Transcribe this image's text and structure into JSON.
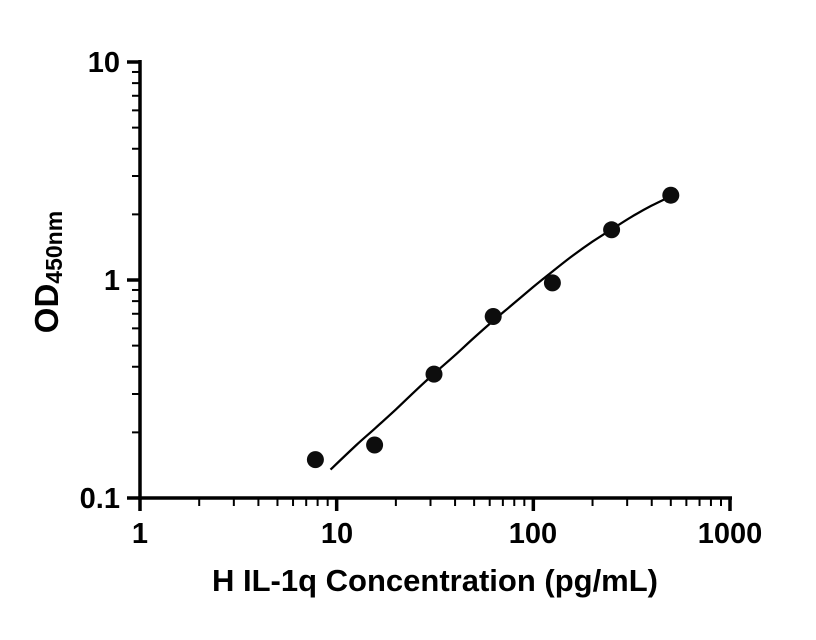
{
  "chart_data": {
    "type": "scatter",
    "title": "",
    "xlabel": "H IL-1q Concentration (pg/mL)",
    "ylabel_main": "OD",
    "ylabel_sub": "450nm",
    "x_scale": "log",
    "y_scale": "log",
    "xlim": [
      1,
      1000
    ],
    "ylim": [
      0.1,
      10
    ],
    "grid": false,
    "legend": "none",
    "x_ticks": [
      {
        "v": 1,
        "label": "1"
      },
      {
        "v": 10,
        "label": "10"
      },
      {
        "v": 100,
        "label": "100"
      },
      {
        "v": 1000,
        "label": "1000"
      }
    ],
    "y_ticks": [
      {
        "v": 10,
        "label": "10"
      },
      {
        "v": 1,
        "label": "1"
      },
      {
        "v": 0.1,
        "label": "0.1"
      }
    ],
    "x_minor_ticks": [
      2,
      3,
      4,
      5,
      6,
      7,
      8,
      9,
      20,
      30,
      40,
      50,
      60,
      70,
      80,
      90,
      200,
      300,
      400,
      500,
      600,
      700,
      800,
      900
    ],
    "y_minor_ticks": [
      0.2,
      0.3,
      0.4,
      0.5,
      0.6,
      0.7,
      0.8,
      0.9,
      2,
      3,
      4,
      5,
      6,
      7,
      8,
      9
    ],
    "points": {
      "x": [
        7.8,
        15.6,
        31.25,
        62.5,
        125,
        250,
        500
      ],
      "y": [
        0.15,
        0.175,
        0.37,
        0.68,
        0.97,
        1.7,
        2.45
      ]
    },
    "fit_curve": [
      [
        9.3,
        0.135
      ],
      [
        12.6,
        0.175
      ],
      [
        15.8,
        0.21
      ],
      [
        20,
        0.255
      ],
      [
        25.1,
        0.31
      ],
      [
        31.6,
        0.375
      ],
      [
        39.8,
        0.45
      ],
      [
        50.1,
        0.545
      ],
      [
        63.1,
        0.655
      ],
      [
        79.4,
        0.78
      ],
      [
        100,
        0.93
      ],
      [
        126,
        1.1
      ],
      [
        158,
        1.29
      ],
      [
        200,
        1.5
      ],
      [
        251,
        1.71
      ],
      [
        316,
        1.95
      ],
      [
        398,
        2.19
      ],
      [
        500,
        2.42
      ]
    ],
    "colors": {
      "axis": "#000000",
      "point": "#0d0d0d",
      "curve": "#000000",
      "background": "#ffffff"
    }
  }
}
